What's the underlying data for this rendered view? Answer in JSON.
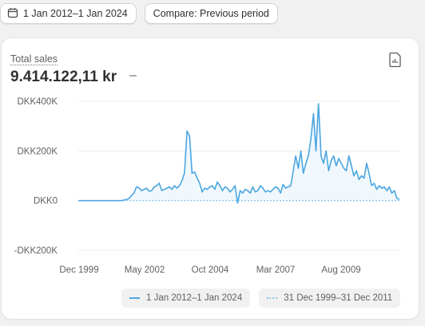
{
  "toolbar": {
    "date_range_label": "1 Jan 2012–1 Jan 2024",
    "compare_label": "Compare: Previous period"
  },
  "card": {
    "metric_label": "Total sales",
    "metric_value": "9.414.122,11 kr",
    "metric_change": "–"
  },
  "icons": {
    "calendar": "calendar-icon",
    "export": "export-icon"
  },
  "colors": {
    "primary_series": "#4ba6e0",
    "comparison_series": "#8ec9ee",
    "area_fill": "#eaf5fc"
  },
  "chart_data": {
    "type": "line",
    "ylim": [
      -200000,
      400000
    ],
    "y_ticks": [
      400000,
      200000,
      0,
      -200000
    ],
    "y_tick_labels": [
      "DKK400K",
      "DKK200K",
      "DKK0",
      "-DKK200K"
    ],
    "x_tick_labels": [
      "Dec 1999",
      "May 2002",
      "Oct 2004",
      "Mar 2007",
      "Aug 2009"
    ],
    "grid": true,
    "legend_position": "bottom",
    "series": [
      {
        "name": "1 Jan 2012–1 Jan 2024",
        "style": "solid",
        "values": [
          0,
          0,
          0,
          0,
          0,
          0,
          0,
          0,
          0,
          0,
          0,
          0,
          0,
          0,
          0,
          0,
          0,
          0,
          2000,
          4000,
          8000,
          20000,
          30000,
          55000,
          52000,
          40000,
          45000,
          50000,
          38000,
          40000,
          55000,
          60000,
          70000,
          40000,
          45000,
          50000,
          55000,
          45000,
          60000,
          50000,
          60000,
          80000,
          110000,
          280000,
          260000,
          110000,
          115000,
          90000,
          70000,
          35000,
          50000,
          45000,
          55000,
          60000,
          45000,
          75000,
          60000,
          40000,
          55000,
          50000,
          35000,
          45000,
          60000,
          -10000,
          40000,
          30000,
          45000,
          40000,
          30000,
          55000,
          35000,
          40000,
          60000,
          50000,
          35000,
          40000,
          35000,
          45000,
          55000,
          50000,
          30000,
          65000,
          50000,
          55000,
          60000,
          120000,
          180000,
          130000,
          200000,
          110000,
          150000,
          180000,
          250000,
          350000,
          200000,
          390000,
          180000,
          150000,
          200000,
          120000,
          160000,
          180000,
          140000,
          170000,
          150000,
          130000,
          120000,
          180000,
          140000,
          100000,
          120000,
          85000,
          100000,
          90000,
          150000,
          110000,
          60000,
          70000,
          45000,
          60000,
          50000,
          55000,
          40000,
          55000,
          30000,
          40000,
          10000,
          5000
        ]
      },
      {
        "name": "31 Dec 1999–31 Dec 2011",
        "style": "dotted",
        "values": [
          0,
          0
        ]
      }
    ]
  },
  "legend": [
    {
      "label": "1 Jan 2012–1 Jan 2024",
      "style": "solid"
    },
    {
      "label": "31 Dec 1999–31 Dec 2011",
      "style": "dotted"
    }
  ]
}
